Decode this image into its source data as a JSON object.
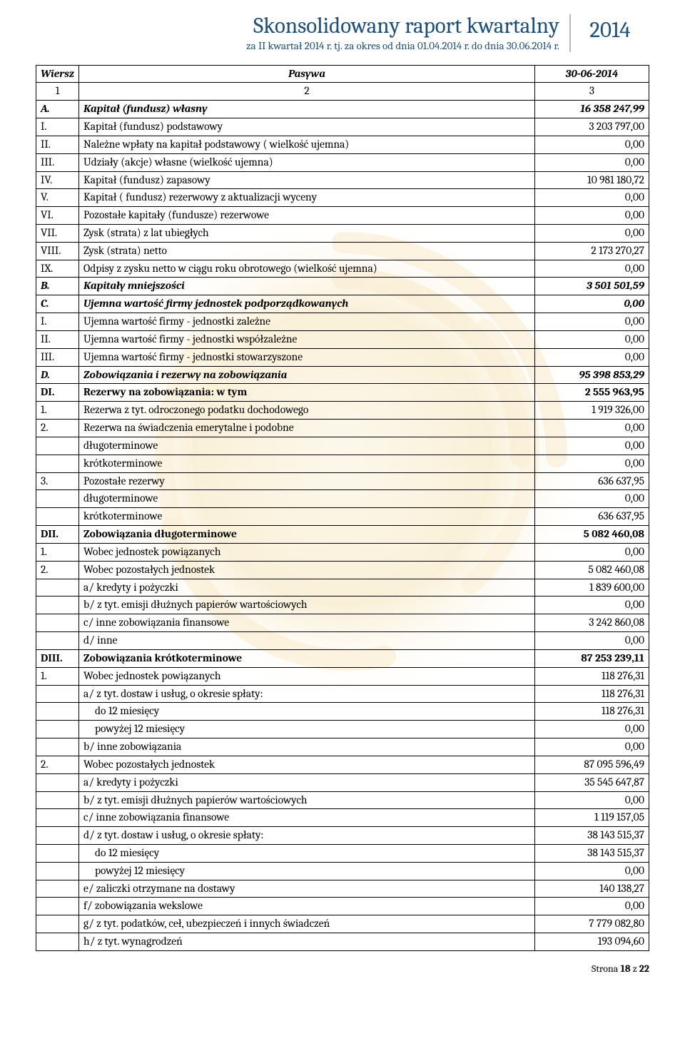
{
  "header": {
    "title": "Skonsolidowany raport kwartalny",
    "subtitle": "za II kwartał 2014 r. tj. za okres od dnia 01.04.2014 r. do dnia 30.06.2014 r.",
    "year": "2014"
  },
  "table": {
    "head": {
      "c1": "Wiersz",
      "c2": "Pasywa",
      "c3": "30-06-2014"
    },
    "numrow": {
      "c1": "1",
      "c2": "2",
      "c3": "3"
    },
    "rows": [
      {
        "c1": "A.",
        "c2": "Kapitał (fundusz) własny",
        "c3": "16 358 247,99",
        "bold": true,
        "ital": true
      },
      {
        "c1": "I.",
        "c2": "Kapitał (fundusz) podstawowy",
        "c3": "3 203 797,00"
      },
      {
        "c1": "II.",
        "c2": "Należne wpłaty na kapitał podstawowy ( wielkość ujemna)",
        "c3": "0,00"
      },
      {
        "c1": "III.",
        "c2": "Udziały (akcje) własne (wielkość ujemna)",
        "c3": "0,00"
      },
      {
        "c1": "IV.",
        "c2": "Kapitał (fundusz) zapasowy",
        "c3": "10 981 180,72"
      },
      {
        "c1": "V.",
        "c2": "Kapitał ( fundusz) rezerwowy z aktualizacji wyceny",
        "c3": "0,00"
      },
      {
        "c1": "VI.",
        "c2": "Pozostałe kapitały (fundusze) rezerwowe",
        "c3": "0,00"
      },
      {
        "c1": "VII.",
        "c2": "Zysk (strata) z lat ubiegłych",
        "c3": "0,00"
      },
      {
        "c1": "VIII.",
        "c2": "Zysk (strata) netto",
        "c3": "2 173 270,27"
      },
      {
        "c1": "IX.",
        "c2": "Odpisy z zysku netto w ciągu roku obrotowego (wielkość ujemna)",
        "c3": "0,00"
      },
      {
        "c1": "B.",
        "c2": "Kapitały mniejszości",
        "c3": "3 501 501,59",
        "bold": true,
        "ital": true
      },
      {
        "c1": "C.",
        "c2": "Ujemna wartość firmy jednostek podporządkowanych",
        "c3": "0,00",
        "bold": true,
        "ital": true
      },
      {
        "c1": "I.",
        "c2": "Ujemna wartość firmy - jednostki zależne",
        "c3": "0,00"
      },
      {
        "c1": "II.",
        "c2": "Ujemna wartość firmy - jednostki współzależne",
        "c3": "0,00"
      },
      {
        "c1": "III.",
        "c2": "Ujemna wartość firmy - jednostki stowarzyszone",
        "c3": "0,00"
      },
      {
        "c1": "D.",
        "c2": "Zobowiązania i rezerwy na zobowiązania",
        "c3": "95 398 853,29",
        "bold": true,
        "ital": true
      },
      {
        "c1": "DI.",
        "c2": "Rezerwy na zobowiązania: w tym",
        "c3": "2 555 963,95",
        "bold": true
      },
      {
        "c1": "1.",
        "c2": "Rezerwa z tyt. odroczonego podatku dochodowego",
        "c3": "1 919 326,00"
      },
      {
        "c1": "2.",
        "c2": "Rezerwa na świadczenia emerytalne i podobne",
        "c3": "0,00"
      },
      {
        "c1": "",
        "c2": "długoterminowe",
        "c3": "0,00"
      },
      {
        "c1": "",
        "c2": "krótkoterminowe",
        "c3": "0,00"
      },
      {
        "c1": "3.",
        "c2": "Pozostałe rezerwy",
        "c3": "636 637,95"
      },
      {
        "c1": "",
        "c2": "długoterminowe",
        "c3": "0,00"
      },
      {
        "c1": "",
        "c2": "krótkoterminowe",
        "c3": "636 637,95"
      },
      {
        "c1": "DII.",
        "c2": "Zobowiązania długoterminowe",
        "c3": "5 082 460,08",
        "bold": true
      },
      {
        "c1": "1.",
        "c2": "Wobec jednostek powiązanych",
        "c3": "0,00"
      },
      {
        "c1": "2.",
        "c2": "Wobec pozostałych jednostek",
        "c3": "5 082 460,08"
      },
      {
        "c1": "",
        "c2": "a/ kredyty i pożyczki",
        "c3": "1 839 600,00"
      },
      {
        "c1": "",
        "c2": "b/ z tyt. emisji dłużnych papierów wartościowych",
        "c3": "0,00"
      },
      {
        "c1": "",
        "c2": "c/ inne zobowiązania finansowe",
        "c3": "3 242 860,08"
      },
      {
        "c1": "",
        "c2": "d/ inne",
        "c3": "0,00"
      },
      {
        "c1": "DIII.",
        "c2": "Zobowiązania krótkoterminowe",
        "c3": "87 253 239,11",
        "bold": true
      },
      {
        "c1": "1.",
        "c2": "Wobec jednostek powiązanych",
        "c3": "118 276,31"
      },
      {
        "c1": "",
        "c2": "a/ z tyt. dostaw i usług, o okresie spłaty:",
        "c3": "118 276,31"
      },
      {
        "c1": "",
        "c2": "do 12 miesięcy",
        "c3": "118 276,31",
        "ind": 1
      },
      {
        "c1": "",
        "c2": "powyżej 12 miesięcy",
        "c3": "0,00",
        "ind": 1
      },
      {
        "c1": "",
        "c2": "b/ inne zobowiązania",
        "c3": "0,00"
      },
      {
        "c1": "2.",
        "c2": "Wobec pozostałych jednostek",
        "c3": "87 095 596,49"
      },
      {
        "c1": "",
        "c2": "a/ kredyty i pożyczki",
        "c3": "35 545 647,87"
      },
      {
        "c1": "",
        "c2": "b/ z tyt. emisji dłużnych papierów wartościowych",
        "c3": "0,00"
      },
      {
        "c1": "",
        "c2": "c/ inne zobowiązania finansowe",
        "c3": "1 119 157,05"
      },
      {
        "c1": "",
        "c2": "d/ z tyt. dostaw i usług, o okresie spłaty:",
        "c3": "38 143 515,37"
      },
      {
        "c1": "",
        "c2": "do 12 miesięcy",
        "c3": "38 143 515,37",
        "ind": 1
      },
      {
        "c1": "",
        "c2": "powyżej 12 miesięcy",
        "c3": "0,00",
        "ind": 1
      },
      {
        "c1": "",
        "c2": "e/ zaliczki otrzymane na dostawy",
        "c3": "140 138,27"
      },
      {
        "c1": "",
        "c2": "f/ zobowiązania wekslowe",
        "c3": "0,00"
      },
      {
        "c1": "",
        "c2": "g/ z tyt. podatków, ceł, ubezpieczeń i innych świadczeń",
        "c3": "7 779 082,80"
      },
      {
        "c1": "",
        "c2": "h/ z tyt. wynagrodzeń",
        "c3": "193 094,60"
      }
    ]
  },
  "footer": {
    "prefix": "Strona ",
    "page": "18",
    "sep": " z ",
    "total": "22"
  },
  "colors": {
    "heading": "#1f4e79",
    "swirl1": "#f7e3b5",
    "swirl2": "#f3d48e",
    "swirl3": "#eec56a"
  }
}
